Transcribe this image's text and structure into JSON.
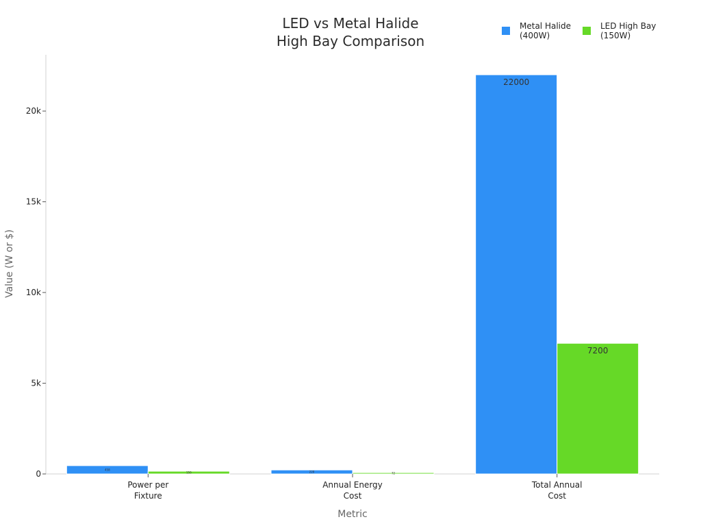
{
  "chart_data": {
    "type": "bar",
    "title": [
      "LED vs Metal Halide",
      "High Bay Comparison"
    ],
    "xlabel": "Metric",
    "ylabel": "Value (W or $)",
    "categories": [
      [
        "Power per",
        "Fixture"
      ],
      [
        "Annual Energy",
        "Cost"
      ],
      [
        "Total Annual",
        "Cost"
      ]
    ],
    "series": [
      {
        "name": [
          "Metal Halide",
          "(400W)"
        ],
        "color": "#2f90f5",
        "values": [
          458,
          220,
          22000
        ],
        "labels": [
          "458",
          "220",
          "22000"
        ]
      },
      {
        "name": [
          "LED High Bay",
          "(150W)"
        ],
        "color": "#66d927",
        "values": [
          150,
          72,
          7200
        ],
        "labels": [
          "150",
          "72",
          "7200"
        ]
      }
    ],
    "yticks": [
      0,
      5000,
      10000,
      15000,
      20000
    ],
    "ytick_labels": [
      "0",
      "5k",
      "10k",
      "15k",
      "20k"
    ],
    "ylim": [
      0,
      23100
    ],
    "grid": false,
    "legend_position": "top-right"
  }
}
